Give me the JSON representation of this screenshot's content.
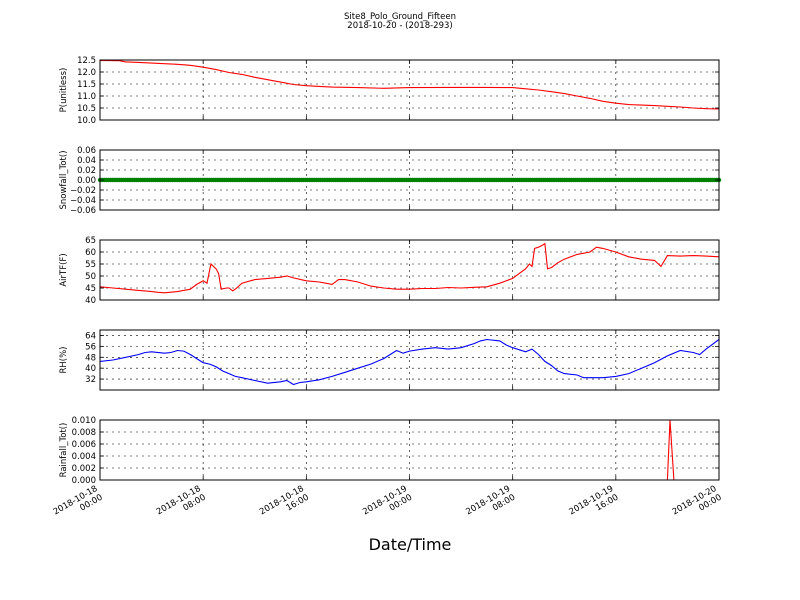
{
  "figure": {
    "title": "Site8_Polo_Ground_Fifteen",
    "subtitle": "2018-10-20 - (2018-293)",
    "xlabel": "Date/Time"
  },
  "chart_data": [
    {
      "type": "line",
      "ylabel": "P(unitless)",
      "ylim": [
        10.0,
        12.5
      ],
      "yticks": [
        "10.0",
        "10.5",
        "11.0",
        "11.5",
        "12.0",
        "12.5"
      ],
      "xlim": [
        0,
        48
      ],
      "x_ticks": [
        "2018-10-18 00:00",
        "2018-10-18 08:00",
        "2018-10-18 16:00",
        "2018-10-19 00:00",
        "2018-10-19 08:00",
        "2018-10-19 16:00",
        "2018-10-20 00:00"
      ],
      "grid": true,
      "series": [
        {
          "color": "#ff0000",
          "points": [
            [
              0,
              12.48
            ],
            [
              1.5,
              12.47
            ],
            [
              2,
              12.42
            ],
            [
              3,
              12.4
            ],
            [
              4,
              12.37
            ],
            [
              6,
              12.32
            ],
            [
              7,
              12.28
            ],
            [
              8,
              12.2
            ],
            [
              9,
              12.1
            ],
            [
              10,
              11.98
            ],
            [
              11,
              11.9
            ],
            [
              12,
              11.78
            ],
            [
              13,
              11.68
            ],
            [
              14,
              11.58
            ],
            [
              15,
              11.48
            ],
            [
              16,
              11.43
            ],
            [
              17,
              11.4
            ],
            [
              18,
              11.37
            ],
            [
              20,
              11.35
            ],
            [
              22,
              11.32
            ],
            [
              24,
              11.35
            ],
            [
              27,
              11.36
            ],
            [
              30,
              11.36
            ],
            [
              32,
              11.35
            ],
            [
              33,
              11.3
            ],
            [
              34,
              11.25
            ],
            [
              35,
              11.18
            ],
            [
              36,
              11.1
            ],
            [
              37,
              11.0
            ],
            [
              38,
              10.9
            ],
            [
              39,
              10.78
            ],
            [
              40,
              10.7
            ],
            [
              41,
              10.64
            ],
            [
              42,
              10.62
            ],
            [
              43,
              10.6
            ],
            [
              44,
              10.57
            ],
            [
              45,
              10.54
            ],
            [
              46,
              10.5
            ],
            [
              47,
              10.47
            ],
            [
              48,
              10.46
            ]
          ]
        }
      ]
    },
    {
      "type": "scatter",
      "ylabel": "Snowfall_Tot()",
      "ylim": [
        -0.06,
        0.06
      ],
      "yticks": [
        "−0.06",
        "−0.04",
        "−0.02",
        "0.00",
        "0.02",
        "0.04",
        "0.06"
      ],
      "xlim": [
        0,
        48
      ],
      "grid": true,
      "series": [
        {
          "color": "#008000",
          "constant": 0.0,
          "count": 290
        }
      ]
    },
    {
      "type": "line",
      "ylabel": "AirTF(F)",
      "ylim": [
        40,
        65
      ],
      "yticks": [
        "40",
        "45",
        "50",
        "55",
        "60",
        "65"
      ],
      "xlim": [
        0,
        48
      ],
      "grid": true,
      "series": [
        {
          "color": "#ff0000",
          "points": [
            [
              0,
              45.5
            ],
            [
              1,
              45
            ],
            [
              2,
              44.5
            ],
            [
              3,
              44
            ],
            [
              3.5,
              43.8
            ],
            [
              4,
              43.5
            ],
            [
              4.5,
              43.2
            ],
            [
              5,
              43
            ],
            [
              6,
              43.5
            ],
            [
              7,
              44.5
            ],
            [
              7.5,
              46.5
            ],
            [
              8,
              48
            ],
            [
              8.3,
              47
            ],
            [
              8.6,
              55
            ],
            [
              9,
              53
            ],
            [
              9.2,
              51
            ],
            [
              9.4,
              44.5
            ],
            [
              9.8,
              45
            ],
            [
              10,
              45
            ],
            [
              10.3,
              43.8
            ],
            [
              10.6,
              45
            ],
            [
              11,
              47
            ],
            [
              12,
              48.5
            ],
            [
              13,
              49
            ],
            [
              14,
              49.5
            ],
            [
              14.5,
              50
            ],
            [
              15,
              49.2
            ],
            [
              16,
              48
            ],
            [
              17,
              47.5
            ],
            [
              17.5,
              47
            ],
            [
              18,
              46.5
            ],
            [
              18.5,
              48.5
            ],
            [
              19,
              48.5
            ],
            [
              20,
              47.5
            ],
            [
              21,
              45.8
            ],
            [
              22,
              45
            ],
            [
              23,
              44.5
            ],
            [
              24,
              44.5
            ],
            [
              25,
              44.8
            ],
            [
              26,
              44.8
            ],
            [
              27,
              45.2
            ],
            [
              28,
              45
            ],
            [
              29,
              45.3
            ],
            [
              30,
              45.5
            ],
            [
              31,
              47
            ],
            [
              32,
              49
            ],
            [
              32.5,
              51
            ],
            [
              33,
              53
            ],
            [
              33.3,
              55
            ],
            [
              33.5,
              54
            ],
            [
              33.7,
              61.5
            ],
            [
              34,
              62
            ],
            [
              34.3,
              62.8
            ],
            [
              34.5,
              63.5
            ],
            [
              34.7,
              53
            ],
            [
              35,
              53.5
            ],
            [
              35.5,
              55.5
            ],
            [
              36,
              57
            ],
            [
              37,
              59
            ],
            [
              38,
              60
            ],
            [
              38.5,
              62
            ],
            [
              39,
              61.5
            ],
            [
              40,
              60
            ],
            [
              41,
              58
            ],
            [
              42,
              57
            ],
            [
              43,
              56.5
            ],
            [
              43.5,
              54
            ],
            [
              44,
              58.5
            ],
            [
              45,
              58.3
            ],
            [
              46,
              58.5
            ],
            [
              47,
              58.3
            ],
            [
              48,
              58
            ]
          ]
        }
      ]
    },
    {
      "type": "line",
      "ylabel": "RH(%)",
      "ylim": [
        24,
        68
      ],
      "yticks": [
        "32",
        "40",
        "48",
        "56",
        "64"
      ],
      "xlim": [
        0,
        48
      ],
      "grid": true,
      "series": [
        {
          "color": "#0000ff",
          "points": [
            [
              0,
              45
            ],
            [
              1,
              46
            ],
            [
              2,
              48
            ],
            [
              3,
              50
            ],
            [
              3.5,
              51.5
            ],
            [
              4,
              52
            ],
            [
              5,
              51
            ],
            [
              5.5,
              51.5
            ],
            [
              6,
              53
            ],
            [
              6.5,
              52.5
            ],
            [
              7,
              50
            ],
            [
              7.5,
              47
            ],
            [
              8,
              44
            ],
            [
              8.5,
              43
            ],
            [
              9,
              41
            ],
            [
              9.5,
              38
            ],
            [
              10,
              36
            ],
            [
              10.5,
              34
            ],
            [
              11,
              33
            ],
            [
              12,
              31
            ],
            [
              13,
              29
            ],
            [
              14,
              30
            ],
            [
              14.5,
              31
            ],
            [
              15,
              28
            ],
            [
              15.5,
              29.5
            ],
            [
              16,
              30
            ],
            [
              17,
              31.5
            ],
            [
              18,
              34
            ],
            [
              19,
              37
            ],
            [
              20,
              40
            ],
            [
              21,
              43
            ],
            [
              22,
              47
            ],
            [
              22.5,
              50
            ],
            [
              23,
              53
            ],
            [
              23.5,
              51
            ],
            [
              24,
              52.5
            ],
            [
              25,
              54
            ],
            [
              26,
              55
            ],
            [
              27,
              54
            ],
            [
              28,
              55
            ],
            [
              29,
              58
            ],
            [
              29.5,
              60
            ],
            [
              30,
              61
            ],
            [
              31,
              60
            ],
            [
              31.5,
              57
            ],
            [
              32,
              55
            ],
            [
              33,
              52
            ],
            [
              33.5,
              54
            ],
            [
              34,
              50
            ],
            [
              34.5,
              45
            ],
            [
              35,
              42
            ],
            [
              35.5,
              38
            ],
            [
              36,
              36
            ],
            [
              37,
              35
            ],
            [
              37.5,
              33
            ],
            [
              38,
              33
            ],
            [
              39,
              33
            ],
            [
              40,
              34
            ],
            [
              41,
              36
            ],
            [
              42,
              40
            ],
            [
              43,
              44
            ],
            [
              44,
              49
            ],
            [
              45,
              53
            ],
            [
              46,
              51.5
            ],
            [
              46.5,
              50
            ],
            [
              47,
              54
            ],
            [
              48,
              61
            ],
            [
              48,
              63
            ]
          ]
        }
      ]
    },
    {
      "type": "line",
      "ylabel": "Rainfall_Tot()",
      "ylim": [
        0.0,
        0.01
      ],
      "yticks": [
        "0.000",
        "0.002",
        "0.004",
        "0.006",
        "0.008",
        "0.010"
      ],
      "xlim": [
        0,
        48
      ],
      "grid": true,
      "series": [
        {
          "color": "#ff0000",
          "points": [
            [
              0,
              0
            ],
            [
              44.0,
              0
            ],
            [
              44.2,
              0.01
            ],
            [
              44.5,
              0
            ],
            [
              48,
              0
            ]
          ]
        }
      ]
    }
  ]
}
